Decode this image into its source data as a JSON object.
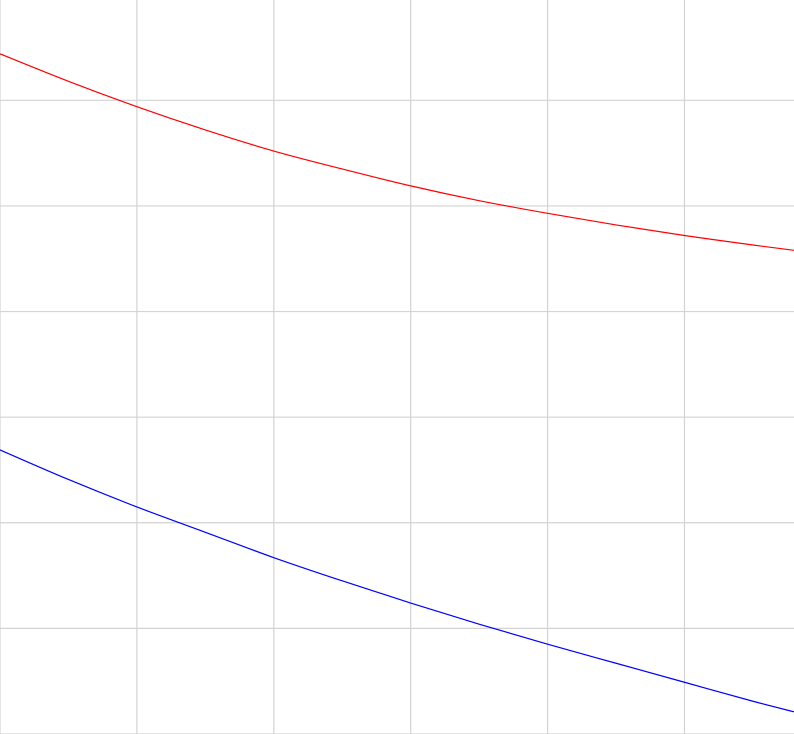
{
  "chart_data": {
    "type": "line",
    "title": "",
    "xlabel": "",
    "ylabel": "",
    "xlim": [
      0,
      5.8
    ],
    "ylim": [
      0,
      6.95
    ],
    "x_gridlines": [
      0,
      1,
      2,
      3,
      4,
      5
    ],
    "y_gridlines": [
      0,
      1,
      2,
      3,
      4,
      5,
      6
    ],
    "grid": true,
    "legend": "none",
    "series": [
      {
        "color": "#ff0000",
        "points": [
          [
            0,
            6.44
          ],
          [
            0.5,
            6.18
          ],
          [
            1,
            5.94
          ],
          [
            1.5,
            5.72
          ],
          [
            2,
            5.52
          ],
          [
            2.5,
            5.35
          ],
          [
            3,
            5.19
          ],
          [
            3.5,
            5.05
          ],
          [
            4,
            4.93
          ],
          [
            4.5,
            4.82
          ],
          [
            5,
            4.72
          ],
          [
            5.5,
            4.63
          ],
          [
            5.8,
            4.58
          ]
        ]
      },
      {
        "color": "#0000ff",
        "points": [
          [
            0,
            2.69
          ],
          [
            0.5,
            2.41
          ],
          [
            1,
            2.15
          ],
          [
            1.5,
            1.91
          ],
          [
            2,
            1.67
          ],
          [
            2.5,
            1.45
          ],
          [
            3,
            1.24
          ],
          [
            3.5,
            1.04
          ],
          [
            4,
            0.85
          ],
          [
            4.5,
            0.67
          ],
          [
            5,
            0.49
          ],
          [
            5.5,
            0.31
          ],
          [
            5.8,
            0.21
          ]
        ]
      }
    ]
  }
}
